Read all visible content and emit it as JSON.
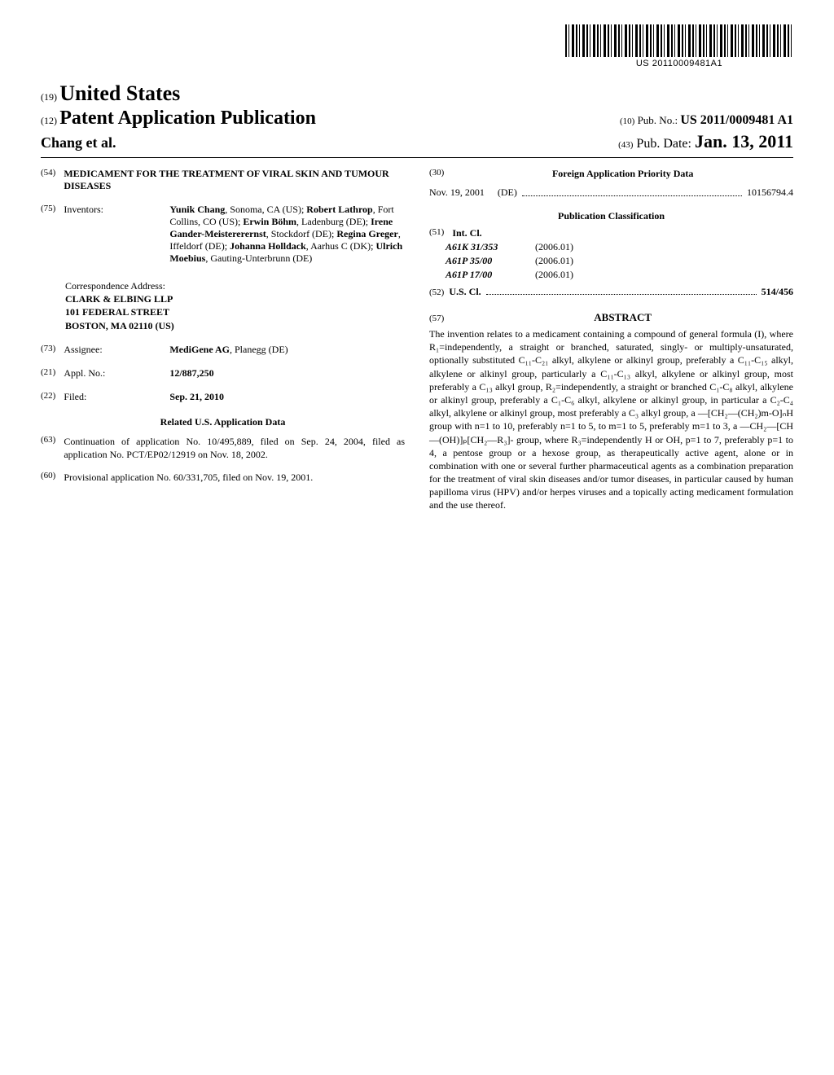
{
  "barcode_number": "US 20110009481A1",
  "country_prefix": "(19)",
  "country": "United States",
  "pubtype_prefix": "(12)",
  "pubtype": "Patent Application Publication",
  "authors_line": "Chang et al.",
  "pubno_prefix": "(10)",
  "pubno_label": "Pub. No.:",
  "pubno": "US 2011/0009481 A1",
  "pubdate_prefix": "(43)",
  "pubdate_label": "Pub. Date:",
  "pubdate": "Jan. 13, 2011",
  "title_prefix": "(54)",
  "title": "MEDICAMENT FOR THE TREATMENT OF VIRAL SKIN AND TUMOUR DISEASES",
  "inventors_prefix": "(75)",
  "inventors_label": "Inventors:",
  "inventors_html": "<span class=\"inventor\">Yunik Chang</span>, Sonoma, CA (US); <span class=\"inventor\">Robert Lathrop</span>, Fort Collins, CO (US); <span class=\"inventor\">Erwin Böhm</span>, Ladenburg (DE); <span class=\"inventor\">Irene Gander-Meistererernst</span>, Stockdorf (DE); <span class=\"inventor\">Regina Greger</span>, Iffeldorf (DE); <span class=\"inventor\">Johanna Holldack</span>, Aarhus C (DK); <span class=\"inventor\">Ulrich Moebius</span>, Gauting-Unterbrunn (DE)",
  "correspondence_label": "Correspondence Address:",
  "correspondence_lines": [
    "CLARK & ELBING LLP",
    "101 FEDERAL STREET",
    "BOSTON, MA 02110 (US)"
  ],
  "assignee_prefix": "(73)",
  "assignee_label": "Assignee:",
  "assignee": "MediGene AG",
  "assignee_loc": ", Planegg (DE)",
  "applno_prefix": "(21)",
  "applno_label": "Appl. No.:",
  "applno": "12/887,250",
  "filed_prefix": "(22)",
  "filed_label": "Filed:",
  "filed": "Sep. 21, 2010",
  "related_title": "Related U.S. Application Data",
  "related_63_prefix": "(63)",
  "related_63": "Continuation of application No. 10/495,889, filed on Sep. 24, 2004, filed as application No. PCT/EP02/12919 on Nov. 18, 2002.",
  "related_60_prefix": "(60)",
  "related_60": "Provisional application No. 60/331,705, filed on Nov. 19, 2001.",
  "foreign_prefix": "(30)",
  "foreign_title": "Foreign Application Priority Data",
  "foreign_date": "Nov. 19, 2001",
  "foreign_country": "(DE)",
  "foreign_number": "10156794.4",
  "pubclass_title": "Publication Classification",
  "intcl_prefix": "(51)",
  "intcl_label": "Int. Cl.",
  "intcl": [
    {
      "code": "A61K 31/353",
      "year": "(2006.01)"
    },
    {
      "code": "A61P 35/00",
      "year": "(2006.01)"
    },
    {
      "code": "A61P 17/00",
      "year": "(2006.01)"
    }
  ],
  "uscl_prefix": "(52)",
  "uscl_label": "U.S. Cl.",
  "uscl_value": "514/456",
  "abstract_prefix": "(57)",
  "abstract_title": "ABSTRACT",
  "abstract_body": "The invention relates to a medicament containing a compound of general formula (I), where R₁=independently, a straight or branched, saturated, singly- or multiply-unsaturated, optionally substituted C₁₁-C₂₁ alkyl, alkylene or alkinyl group, preferably a C₁₁-C₁₅ alkyl, alkylene or alkinyl group, particularly a C₁₁-C₁₃ alkyl, alkylene or alkinyl group, most preferably a C₁₃ alkyl group, R₂=independently, a straight or branched C₁-C₈ alkyl, alkylene or alkinyl group, preferably a C₁-C₆ alkyl, alkylene or alkinyl group, in particular a C₂-C₄ alkyl, alkylene or alkinyl group, most preferably a C₃ alkyl group, a —[CH₂—(CH₂)m-O]ₙH group with n=1 to 10, preferably n=1 to 5, to m=1 to 5, preferably m=1 to 3, a —CH₂—[CH—(OH)]ₚ[CH₂—R₃]- group, where R₃=independently H or OH, p=1 to 7, preferably p=1 to 4, a pentose group or a hexose group, as therapeutically active agent, alone or in combination with one or several further pharmaceutical agents as a combination preparation for the treatment of viral skin diseases and/or tumor diseases, in particular caused by human papilloma virus (HPV) and/or herpes viruses and a topically acting medicament formulation and the use thereof."
}
